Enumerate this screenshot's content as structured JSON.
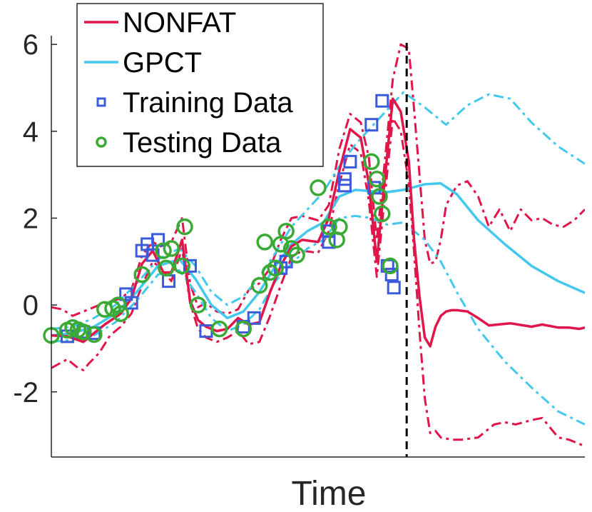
{
  "chart_data": {
    "type": "line",
    "title": "",
    "xlabel": "Time",
    "ylabel": "",
    "xlim": [
      0,
      1
    ],
    "ylim": [
      -3.5,
      6.2
    ],
    "yticks": [
      -2,
      0,
      2,
      4,
      6
    ],
    "ytick_labels": [
      "-2",
      "0",
      "2",
      "4",
      "6"
    ],
    "divider_x": 0.666,
    "legend_position": "top-left",
    "colors": {
      "nonfat": "#e0164b",
      "gpct": "#44c8ee",
      "training": "#3b5bdb",
      "testing": "#3aaa35",
      "divider": "#000000",
      "axis": "#262626"
    },
    "legend": [
      {
        "label": "NONFAT",
        "symbol": "line",
        "color": "#e0164b"
      },
      {
        "label": "GPCT",
        "symbol": "line",
        "color": "#44c8ee"
      },
      {
        "label": "Training Data",
        "symbol": "square",
        "color": "#3b5bdb"
      },
      {
        "label": "Testing Data",
        "symbol": "circle",
        "color": "#3aaa35"
      }
    ],
    "series": [
      {
        "name": "NONFAT",
        "style": "solid",
        "color": "#e0164b",
        "x": [
          0,
          0.03,
          0.06,
          0.08,
          0.1,
          0.13,
          0.15,
          0.17,
          0.19,
          0.21,
          0.225,
          0.245,
          0.26,
          0.275,
          0.29,
          0.31,
          0.33,
          0.35,
          0.37,
          0.39,
          0.41,
          0.43,
          0.45,
          0.47,
          0.5,
          0.52,
          0.54,
          0.56,
          0.58,
          0.595,
          0.61,
          0.625,
          0.64,
          0.655,
          0.67,
          0.68,
          0.69,
          0.7,
          0.71,
          0.72,
          0.73,
          0.74,
          0.75,
          0.76,
          0.78,
          0.8,
          0.82,
          0.86,
          0.9,
          0.92,
          0.95,
          0.97,
          0.99,
          1
        ],
        "y": [
          -0.7,
          -0.72,
          -0.85,
          -0.65,
          -0.45,
          -0.2,
          0.15,
          0.95,
          1.25,
          0.75,
          0.75,
          1.5,
          0.1,
          -0.35,
          -0.5,
          -0.6,
          -0.55,
          -0.3,
          -0.45,
          -0.4,
          0.3,
          0.9,
          1.35,
          1.5,
          1.45,
          2.0,
          3.1,
          4.05,
          3.85,
          2.8,
          1.0,
          2.9,
          4.75,
          4.45,
          3.3,
          1.5,
          0.2,
          -0.75,
          -0.95,
          -0.5,
          -0.25,
          -0.15,
          -0.12,
          -0.12,
          -0.15,
          -0.3,
          -0.47,
          -0.42,
          -0.5,
          -0.45,
          -0.52,
          -0.52,
          -0.55,
          -0.52
        ]
      },
      {
        "name": "NONFAT upper",
        "style": "dashdot",
        "color": "#e0164b",
        "x": [
          0,
          0.02,
          0.04,
          0.06,
          0.08,
          0.1,
          0.13,
          0.15,
          0.17,
          0.19,
          0.205,
          0.225,
          0.245,
          0.26,
          0.275,
          0.29,
          0.31,
          0.33,
          0.35,
          0.37,
          0.39,
          0.41,
          0.43,
          0.45,
          0.47,
          0.5,
          0.52,
          0.54,
          0.56,
          0.58,
          0.595,
          0.61,
          0.625,
          0.64,
          0.655,
          0.67,
          0.68,
          0.69,
          0.7,
          0.71,
          0.72,
          0.73,
          0.74,
          0.76,
          0.78,
          0.8,
          0.82,
          0.84,
          0.86,
          0.88,
          0.9,
          0.92,
          0.94,
          0.96,
          0.98,
          1
        ],
        "y": [
          -0.05,
          -0.1,
          -0.25,
          -0.15,
          -0.05,
          0.05,
          0.15,
          0.35,
          1.15,
          1.45,
          1.35,
          1.45,
          2.0,
          0.5,
          -0.05,
          0.05,
          -0.15,
          -0.2,
          -0.1,
          0.35,
          0.5,
          0.85,
          1.5,
          2.0,
          2.05,
          1.95,
          2.3,
          3.6,
          4.4,
          4.2,
          3.4,
          1.5,
          3.3,
          5.2,
          6.0,
          5.9,
          4.5,
          3.0,
          1.5,
          0.95,
          1.0,
          1.5,
          2.3,
          2.75,
          2.85,
          2.5,
          1.8,
          2.2,
          1.7,
          2.2,
          1.95,
          2.0,
          1.85,
          1.8,
          1.95,
          2.2
        ]
      },
      {
        "name": "NONFAT lower",
        "style": "dashdot",
        "color": "#e0164b",
        "x": [
          0,
          0.03,
          0.05,
          0.06,
          0.07,
          0.09,
          0.11,
          0.13,
          0.15,
          0.17,
          0.19,
          0.205,
          0.225,
          0.245,
          0.26,
          0.275,
          0.29,
          0.31,
          0.33,
          0.35,
          0.37,
          0.39,
          0.41,
          0.43,
          0.45,
          0.47,
          0.5,
          0.52,
          0.54,
          0.56,
          0.58,
          0.595,
          0.61,
          0.625,
          0.64,
          0.655,
          0.67,
          0.68,
          0.69,
          0.7,
          0.71,
          0.72,
          0.73,
          0.75,
          0.77,
          0.8,
          0.83,
          0.85,
          0.87,
          0.9,
          0.92,
          0.95,
          0.97,
          1
        ],
        "y": [
          -1.45,
          -1.25,
          -1.45,
          -1.5,
          -1.35,
          -1.1,
          -0.7,
          -0.5,
          -0.2,
          0.45,
          1.0,
          0.85,
          0.55,
          1.3,
          0.05,
          -0.55,
          -0.75,
          -0.85,
          -0.75,
          -0.6,
          -0.9,
          -0.85,
          -0.25,
          0.45,
          1.1,
          1.25,
          1.2,
          1.7,
          2.8,
          3.7,
          3.5,
          2.4,
          0.65,
          2.5,
          4.3,
          4.0,
          2.8,
          1.2,
          -0.6,
          -2.15,
          -2.95,
          -2.9,
          -3.05,
          -3.1,
          -3.1,
          -3.05,
          -2.75,
          -2.7,
          -2.75,
          -2.65,
          -2.6,
          -3.05,
          -3.1,
          -3.25
        ]
      },
      {
        "name": "GPCT",
        "style": "solid",
        "color": "#44c8ee",
        "x": [
          0,
          0.04,
          0.08,
          0.12,
          0.16,
          0.2,
          0.24,
          0.27,
          0.3,
          0.33,
          0.36,
          0.39,
          0.42,
          0.45,
          0.48,
          0.51,
          0.54,
          0.57,
          0.6,
          0.63,
          0.66,
          0.7,
          0.73,
          0.76,
          0.8,
          0.85,
          0.9,
          0.95,
          1
        ],
        "y": [
          -0.7,
          -0.65,
          -0.5,
          -0.2,
          0.3,
          0.9,
          1.05,
          0.6,
          0.0,
          -0.3,
          -0.15,
          0.3,
          0.9,
          1.4,
          1.7,
          1.9,
          2.5,
          2.65,
          2.62,
          2.6,
          2.65,
          2.78,
          2.8,
          2.55,
          1.95,
          1.4,
          0.9,
          0.55,
          0.28
        ]
      },
      {
        "name": "GPCT upper",
        "style": "dashdot",
        "color": "#44c8ee",
        "x": [
          0,
          0.04,
          0.08,
          0.12,
          0.16,
          0.2,
          0.24,
          0.27,
          0.3,
          0.33,
          0.36,
          0.39,
          0.42,
          0.45,
          0.48,
          0.51,
          0.54,
          0.57,
          0.6,
          0.63,
          0.66,
          0.7,
          0.74,
          0.78,
          0.82,
          0.86,
          0.9,
          0.95,
          1
        ],
        "y": [
          -0.55,
          -0.5,
          -0.3,
          0.0,
          0.5,
          1.05,
          1.3,
          0.9,
          0.3,
          0.0,
          0.2,
          0.65,
          1.2,
          1.8,
          2.2,
          2.6,
          3.2,
          3.7,
          4.1,
          4.5,
          4.9,
          4.55,
          4.15,
          4.6,
          4.85,
          4.75,
          4.2,
          3.65,
          3.25
        ]
      },
      {
        "name": "GPCT lower",
        "style": "dashdot",
        "color": "#44c8ee",
        "x": [
          0,
          0.04,
          0.08,
          0.12,
          0.16,
          0.2,
          0.24,
          0.27,
          0.3,
          0.33,
          0.36,
          0.39,
          0.42,
          0.45,
          0.48,
          0.51,
          0.54,
          0.57,
          0.6,
          0.63,
          0.66,
          0.7,
          0.73,
          0.76,
          0.8,
          0.85,
          0.9,
          0.95,
          1
        ],
        "y": [
          -0.85,
          -0.8,
          -0.7,
          -0.4,
          0.1,
          0.7,
          0.8,
          0.3,
          -0.3,
          -0.6,
          -0.45,
          -0.1,
          0.55,
          0.95,
          1.3,
          1.5,
          2.0,
          2.05,
          2.0,
          1.85,
          1.9,
          1.5,
          1.0,
          0.3,
          -0.55,
          -1.3,
          -1.9,
          -2.45,
          -2.75
        ]
      }
    ],
    "training_data": {
      "x": [
        0.03,
        0.06,
        0.08,
        0.14,
        0.15,
        0.17,
        0.18,
        0.19,
        0.2,
        0.22,
        0.26,
        0.29,
        0.36,
        0.38,
        0.43,
        0.44,
        0.52,
        0.52,
        0.55,
        0.55,
        0.56,
        0.6,
        0.605,
        0.62,
        0.63,
        0.638,
        0.642
      ],
      "y": [
        -0.72,
        -0.62,
        -0.65,
        0.25,
        0.05,
        1.25,
        1.4,
        1.15,
        1.5,
        0.55,
        0.9,
        -0.6,
        -0.5,
        -0.3,
        0.85,
        1.0,
        1.7,
        1.45,
        2.9,
        2.75,
        3.3,
        4.15,
        2.7,
        4.7,
        0.9,
        0.7,
        0.4
      ]
    },
    "testing_data": {
      "x": [
        0.0,
        0.03,
        0.04,
        0.05,
        0.06,
        0.08,
        0.1,
        0.115,
        0.125,
        0.13,
        0.17,
        0.21,
        0.215,
        0.225,
        0.245,
        0.25,
        0.275,
        0.315,
        0.36,
        0.39,
        0.4,
        0.41,
        0.42,
        0.43,
        0.44,
        0.45,
        0.46,
        0.5,
        0.52,
        0.535,
        0.54,
        0.6,
        0.61,
        0.615,
        0.62,
        0.635
      ],
      "y": [
        -0.7,
        -0.58,
        -0.52,
        -0.57,
        -0.62,
        -0.68,
        -0.1,
        -0.08,
        0.0,
        -0.2,
        0.7,
        1.25,
        0.85,
        1.3,
        0.9,
        1.8,
        0.0,
        -0.55,
        -0.55,
        0.45,
        1.45,
        0.75,
        0.85,
        1.4,
        1.7,
        1.3,
        1.15,
        2.7,
        1.8,
        1.5,
        1.8,
        3.3,
        2.9,
        2.5,
        2.1,
        0.9
      ]
    }
  }
}
